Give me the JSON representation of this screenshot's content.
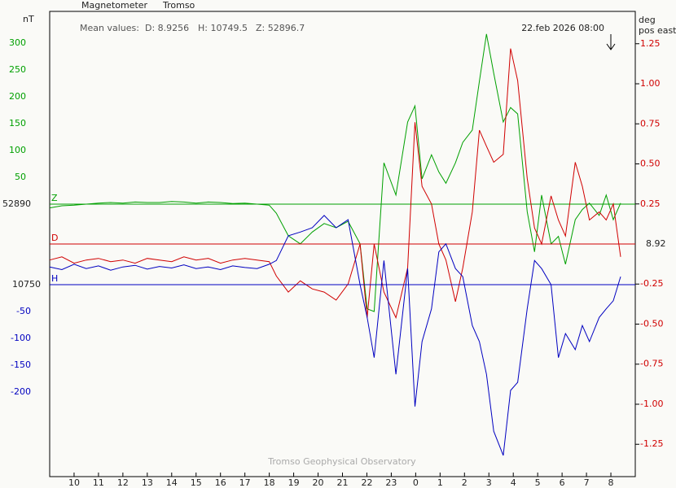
{
  "chart_data": {
    "type": "line",
    "title": "Magnetometer",
    "station": "Tromso",
    "left_unit": "nT",
    "right_unit": "deg",
    "right_unit_sub": "pos east",
    "mean_values": {
      "label": "Mean values:",
      "D": "D: 8.9256",
      "H": "H: 10749.5",
      "Z": "Z: 52896.7"
    },
    "timestamp": "22.feb 2026 08:00",
    "footer": "Tromso Geophysical Observatory",
    "xlim": [
      9,
      33
    ],
    "xticks": [
      10,
      11,
      12,
      13,
      14,
      15,
      16,
      17,
      18,
      19,
      20,
      21,
      22,
      23,
      {
        "value": 24,
        "label": "0"
      },
      {
        "value": 25,
        "label": "1"
      },
      {
        "value": 26,
        "label": "2"
      },
      {
        "value": 27,
        "label": "3"
      },
      {
        "value": 28,
        "label": "4"
      },
      {
        "value": 29,
        "label": "5"
      },
      {
        "value": 30,
        "label": "6"
      },
      {
        "value": 31,
        "label": "7"
      },
      {
        "value": 32,
        "label": "8"
      }
    ],
    "ylim": [
      -507.6,
      359.1
    ],
    "yticks": [
      50,
      100,
      150,
      200,
      250,
      300
    ],
    "yhlim": [
      -357.6,
      509.1
    ],
    "yhticks": [
      -200,
      -150,
      -100,
      -50
    ],
    "y2lim": [
      -1.4518,
      1.4518
    ],
    "y2ticks": [
      {
        "value": 1.25,
        "label": "1.25"
      },
      {
        "value": 1,
        "label": "1.00"
      },
      {
        "value": 0.75,
        "label": "0.75"
      },
      {
        "value": 0.5,
        "label": "0.50"
      },
      {
        "value": 0.25,
        "label": "0.25"
      },
      {
        "value": -0.25,
        "label": "-0.25"
      },
      {
        "value": -0.5,
        "label": "-0.50"
      },
      {
        "value": -0.75,
        "label": "-0.75"
      },
      {
        "value": -1,
        "label": "-1.00"
      },
      {
        "value": -1.25,
        "label": "-1.25"
      }
    ],
    "x": [
      9,
      9.5,
      10,
      10.5,
      11,
      11.5,
      12,
      12.5,
      13,
      13.5,
      14,
      14.5,
      15,
      15.5,
      16,
      16.5,
      17,
      17.5,
      18,
      18.29,
      18.78,
      19.27,
      19.76,
      20.25,
      20.74,
      21.23,
      21.72,
      22.01,
      22.3,
      22.7,
      23.19,
      23.67,
      23.97,
      24.26,
      24.65,
      24.95,
      25.24,
      25.63,
      25.93,
      26.32,
      26.61,
      26.9,
      27.2,
      27.59,
      27.89,
      28.18,
      28.57,
      28.87,
      29.16,
      29.55,
      29.85,
      30.14,
      30.54,
      30.83,
      31.12,
      31.52,
      31.81,
      32.1,
      32.4
    ],
    "series": [
      {
        "name": "Z",
        "color": "#00a000",
        "axis": "y",
        "baseline": 52890,
        "values": [
          -7,
          -3,
          -2,
          0,
          2,
          3,
          2,
          4,
          3,
          3,
          5,
          4,
          2,
          4,
          3,
          1,
          2,
          0,
          -2,
          -17,
          -59,
          -74,
          -52,
          -36,
          -44,
          -32,
          -74,
          -195,
          -200,
          77,
          17,
          153,
          183,
          47,
          92,
          60,
          39,
          77,
          115,
          138,
          229,
          317,
          244,
          153,
          180,
          168,
          -14,
          -89,
          17,
          -74,
          -60,
          -112,
          -29,
          -10,
          2,
          -21,
          17,
          -29,
          2
        ]
      },
      {
        "name": "D",
        "color": "#d00000",
        "axis": "y2",
        "baseline": 8.92,
        "values": [
          -0.1,
          -0.08,
          -0.12,
          -0.1,
          -0.09,
          -0.11,
          -0.1,
          -0.12,
          -0.09,
          -0.1,
          -0.11,
          -0.08,
          -0.1,
          -0.09,
          -0.12,
          -0.1,
          -0.09,
          -0.1,
          -0.11,
          -0.2,
          -0.3,
          -0.23,
          -0.28,
          -0.3,
          -0.35,
          -0.25,
          0,
          -0.46,
          0,
          -0.3,
          -0.46,
          -0.15,
          0.76,
          0.36,
          0.25,
          0,
          -0.1,
          -0.36,
          -0.15,
          0.2,
          0.71,
          0.61,
          0.51,
          0.56,
          1.22,
          1.02,
          0.41,
          0.1,
          0,
          0.3,
          0.15,
          0.05,
          0.51,
          0.36,
          0.15,
          0.2,
          0.15,
          0.25,
          -0.08
        ]
      },
      {
        "name": "H",
        "color": "#0000c0",
        "axis": "yh",
        "baseline": 10750,
        "values": [
          33,
          28,
          38,
          30,
          35,
          27,
          33,
          36,
          29,
          34,
          31,
          37,
          30,
          33,
          28,
          35,
          32,
          30,
          38,
          45,
          91,
          98,
          106,
          129,
          106,
          121,
          0,
          -61,
          -136,
          45,
          -167,
          30,
          -227,
          -106,
          -45,
          61,
          76,
          30,
          15,
          -76,
          -106,
          -167,
          -273,
          -318,
          -197,
          -182,
          -45,
          45,
          30,
          0,
          -136,
          -91,
          -121,
          -76,
          -106,
          -61,
          -45,
          -30,
          15
        ]
      }
    ]
  }
}
